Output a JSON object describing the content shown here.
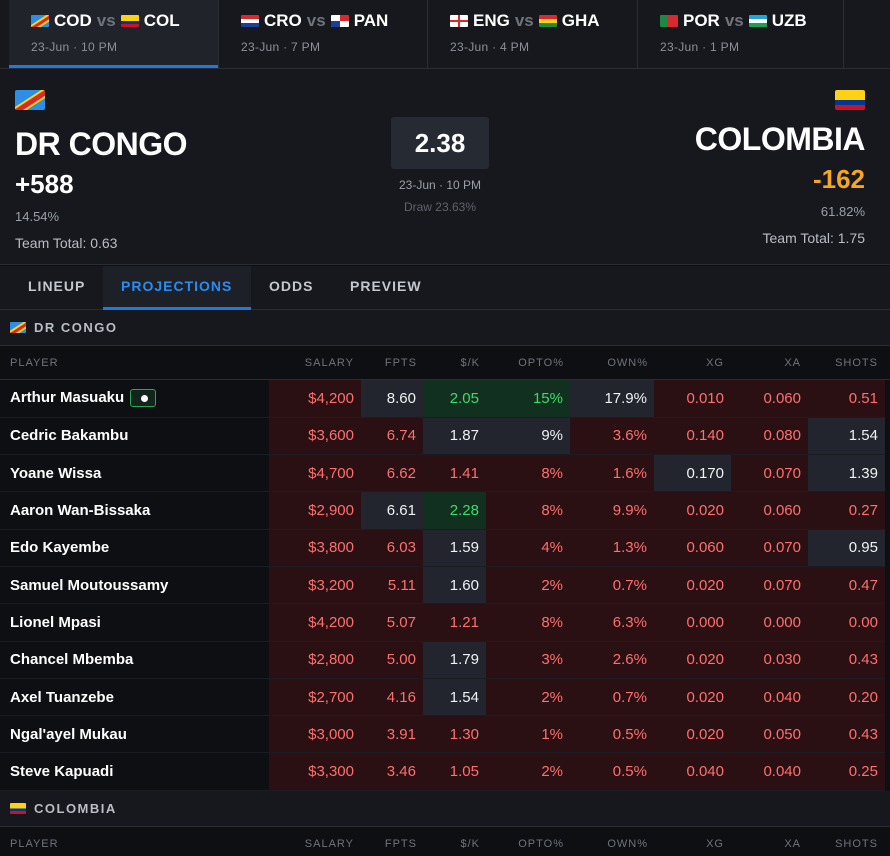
{
  "matches": [
    {
      "home_code": "COD",
      "away_code": "COL",
      "vs": "vs",
      "when": "23-Jun · 10 PM",
      "home_flag": "flag-dr-congo",
      "away_flag": "flag-colombia"
    },
    {
      "home_code": "CRO",
      "away_code": "PAN",
      "vs": "vs",
      "when": "23-Jun · 7 PM",
      "home_flag": "flag-croatia",
      "away_flag": "flag-panama"
    },
    {
      "home_code": "ENG",
      "away_code": "GHA",
      "vs": "vs",
      "when": "23-Jun · 4 PM",
      "home_flag": "flag-england",
      "away_flag": "flag-ghana"
    },
    {
      "home_code": "POR",
      "away_code": "UZB",
      "vs": "vs",
      "when": "23-Jun · 1 PM",
      "home_flag": "flag-portugal",
      "away_flag": "flag-uzbekistan"
    }
  ],
  "game": {
    "home": {
      "name": "DR CONGO",
      "moneyline": "+588",
      "win_pct": "14.54%",
      "team_total": "Team Total: 0.63"
    },
    "away": {
      "name": "COLOMBIA",
      "moneyline": "-162",
      "win_pct": "61.82%",
      "team_total": "Team Total: 1.75"
    },
    "total": "2.38",
    "when": "23-Jun · 10 PM",
    "draw": "Draw 23.63%"
  },
  "section_tabs": [
    "LINEUP",
    "PROJECTIONS",
    "ODDS",
    "PREVIEW"
  ],
  "active_section_tab": "PROJECTIONS",
  "columns": [
    "PLAYER",
    "SALARY",
    "FPTS",
    "$/K",
    "OPTO%",
    "OWN%",
    "XG",
    "XA",
    "SHOTS"
  ],
  "teams": [
    {
      "name": "DR CONGO",
      "players": [
        {
          "name": "Arthur Masuaku",
          "badge": "soccer-ball-icon",
          "salary": "$4,200",
          "fpts": "8.60",
          "per_k": "2.05",
          "opto": "15%",
          "own": "17.9%",
          "xg": "0.010",
          "xa": "0.060",
          "shots": "0.51"
        },
        {
          "name": "Cedric Bakambu",
          "salary": "$3,600",
          "fpts": "6.74",
          "per_k": "1.87",
          "opto": "9%",
          "own": "3.6%",
          "xg": "0.140",
          "xa": "0.080",
          "shots": "1.54"
        },
        {
          "name": "Yoane Wissa",
          "salary": "$4,700",
          "fpts": "6.62",
          "per_k": "1.41",
          "opto": "8%",
          "own": "1.6%",
          "xg": "0.170",
          "xa": "0.070",
          "shots": "1.39"
        },
        {
          "name": "Aaron Wan-Bissaka",
          "salary": "$2,900",
          "fpts": "6.61",
          "per_k": "2.28",
          "opto": "8%",
          "own": "9.9%",
          "xg": "0.020",
          "xa": "0.060",
          "shots": "0.27"
        },
        {
          "name": "Edo Kayembe",
          "salary": "$3,800",
          "fpts": "6.03",
          "per_k": "1.59",
          "opto": "4%",
          "own": "1.3%",
          "xg": "0.060",
          "xa": "0.070",
          "shots": "0.95"
        },
        {
          "name": "Samuel Moutoussamy",
          "salary": "$3,200",
          "fpts": "5.11",
          "per_k": "1.60",
          "opto": "2%",
          "own": "0.7%",
          "xg": "0.020",
          "xa": "0.070",
          "shots": "0.47"
        },
        {
          "name": "Lionel Mpasi",
          "salary": "$4,200",
          "fpts": "5.07",
          "per_k": "1.21",
          "opto": "8%",
          "own": "6.3%",
          "xg": "0.000",
          "xa": "0.000",
          "shots": "0.00"
        },
        {
          "name": "Chancel Mbemba",
          "salary": "$2,800",
          "fpts": "5.00",
          "per_k": "1.79",
          "opto": "3%",
          "own": "2.6%",
          "xg": "0.020",
          "xa": "0.030",
          "shots": "0.43"
        },
        {
          "name": "Axel Tuanzebe",
          "salary": "$2,700",
          "fpts": "4.16",
          "per_k": "1.54",
          "opto": "2%",
          "own": "0.7%",
          "xg": "0.020",
          "xa": "0.040",
          "shots": "0.20"
        },
        {
          "name": "Ngal'ayel Mukau",
          "salary": "$3,000",
          "fpts": "3.91",
          "per_k": "1.30",
          "opto": "1%",
          "own": "0.5%",
          "xg": "0.020",
          "xa": "0.050",
          "shots": "0.43"
        },
        {
          "name": "Steve Kapuadi",
          "salary": "$3,300",
          "fpts": "3.46",
          "per_k": "1.05",
          "opto": "2%",
          "own": "0.5%",
          "xg": "0.040",
          "xa": "0.040",
          "shots": "0.25"
        }
      ]
    },
    {
      "name": "COLOMBIA",
      "players": []
    }
  ],
  "colors": {
    "accent": "#1f7ae0",
    "positive": "#3ddc6a",
    "negative": "#ff6f6f",
    "away_moneyline": "#f5a623"
  }
}
